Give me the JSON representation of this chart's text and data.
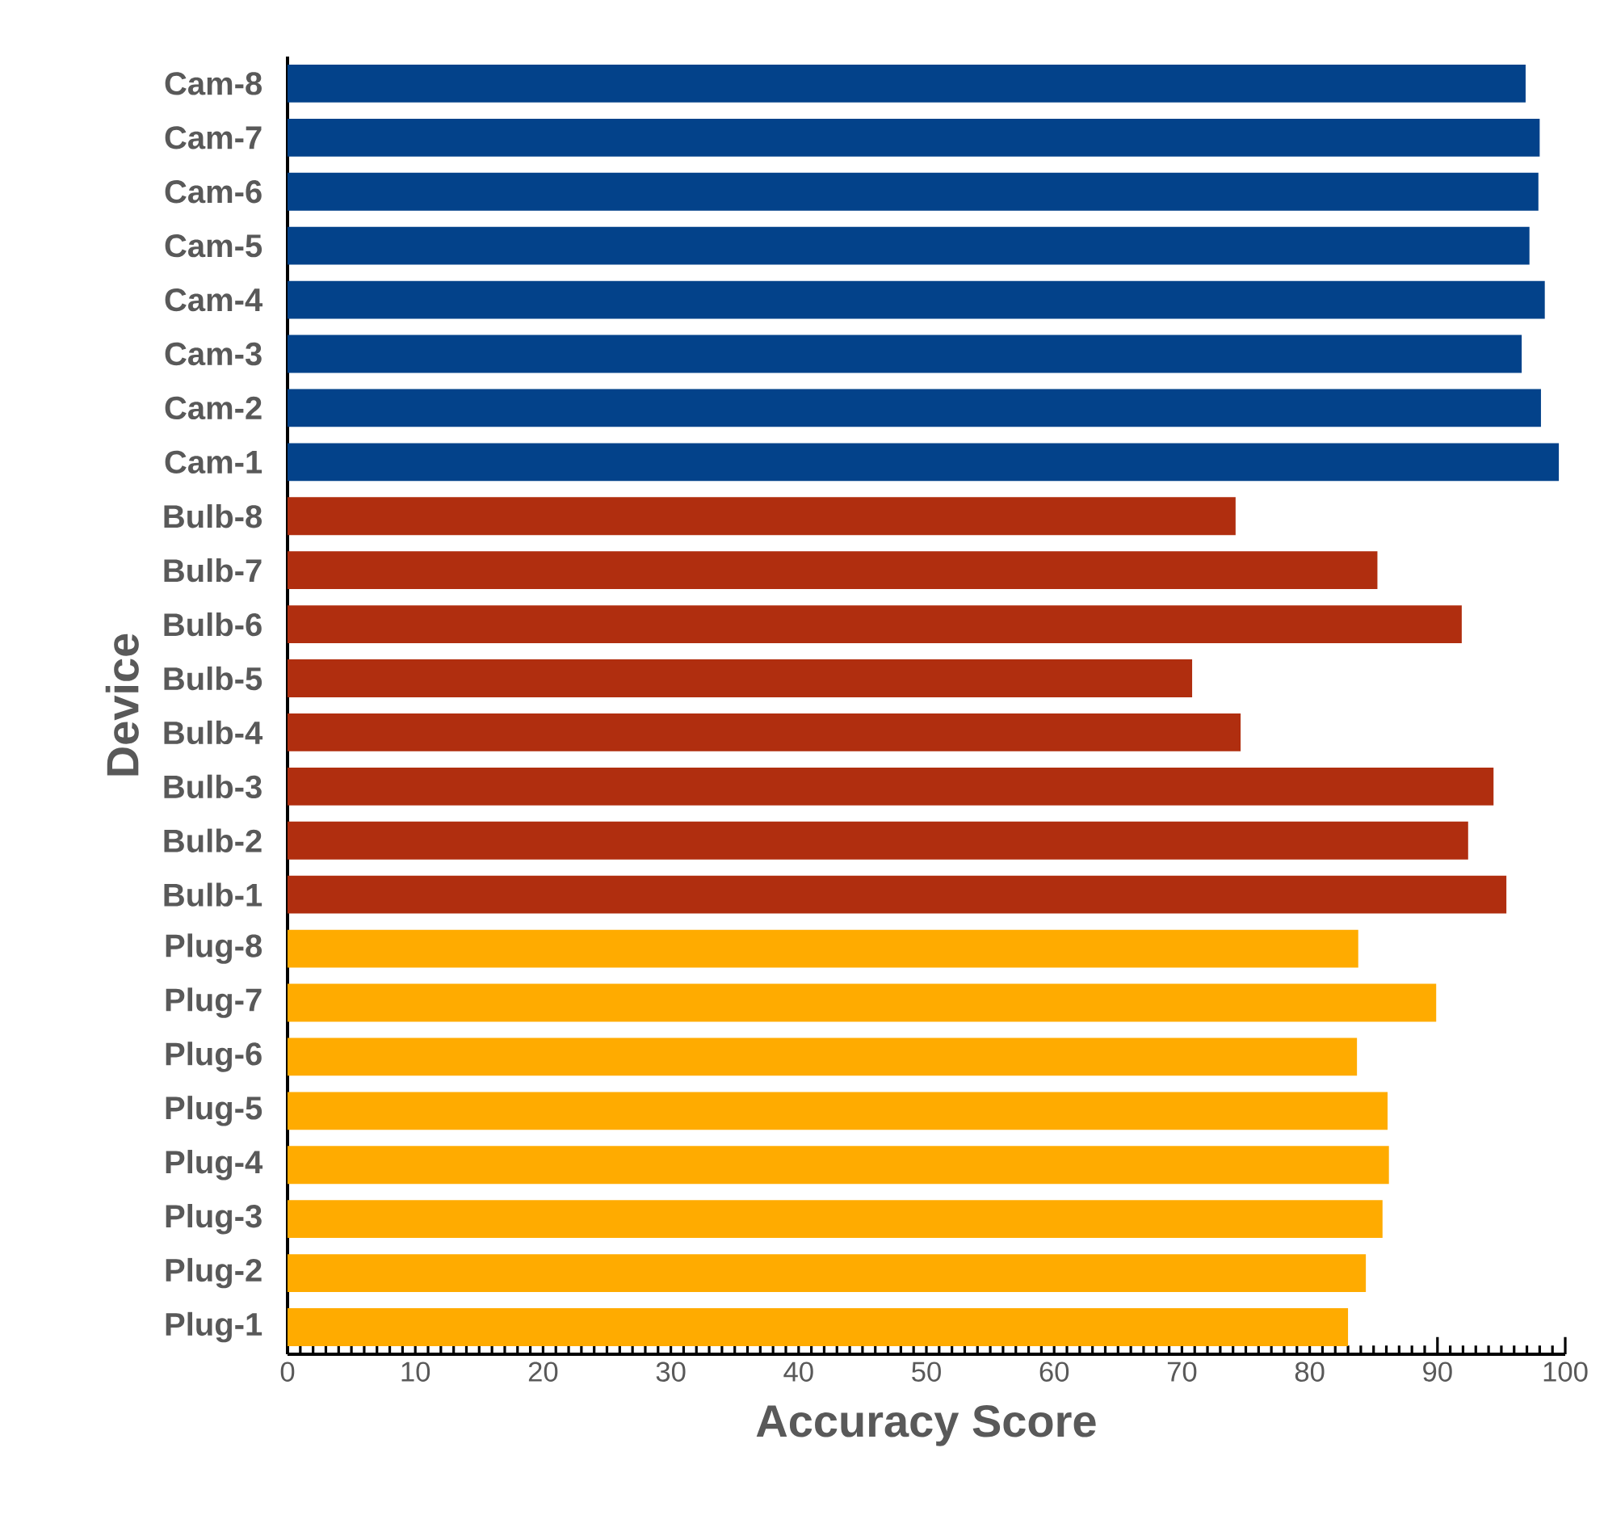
{
  "chart_data": {
    "type": "bar",
    "orientation": "horizontal",
    "xlabel": "Accuracy Score",
    "ylabel": "Device",
    "categories": [
      "Cam-8",
      "Cam-7",
      "Cam-6",
      "Cam-5",
      "Cam-4",
      "Cam-3",
      "Cam-2",
      "Cam-1",
      "Bulb-8",
      "Bulb-7",
      "Bulb-6",
      "Bulb-5",
      "Bulb-4",
      "Bulb-3",
      "Bulb-2",
      "Bulb-1",
      "Plug-8",
      "Plug-7",
      "Plug-6",
      "Plug-5",
      "Plug-4",
      "Plug-3",
      "Plug-2",
      "Plug-1"
    ],
    "values": [
      96.9,
      98.0,
      97.9,
      97.2,
      98.4,
      96.6,
      98.1,
      99.5,
      74.2,
      85.3,
      91.9,
      70.8,
      74.6,
      94.4,
      92.4,
      95.4,
      83.8,
      89.9,
      83.7,
      86.1,
      86.2,
      85.7,
      84.4,
      83.0
    ],
    "colors": [
      "#03428a",
      "#03428a",
      "#03428a",
      "#03428a",
      "#03428a",
      "#03428a",
      "#03428a",
      "#03428a",
      "#b02e0f",
      "#b02e0f",
      "#b02e0f",
      "#b02e0f",
      "#b02e0f",
      "#b02e0f",
      "#b02e0f",
      "#b02e0f",
      "#ffab00",
      "#ffab00",
      "#ffab00",
      "#ffab00",
      "#ffab00",
      "#ffab00",
      "#ffab00",
      "#ffab00"
    ],
    "xlim": [
      0,
      100
    ],
    "xticks": [
      0,
      10,
      20,
      30,
      40,
      50,
      60,
      70,
      80,
      90,
      100
    ]
  }
}
